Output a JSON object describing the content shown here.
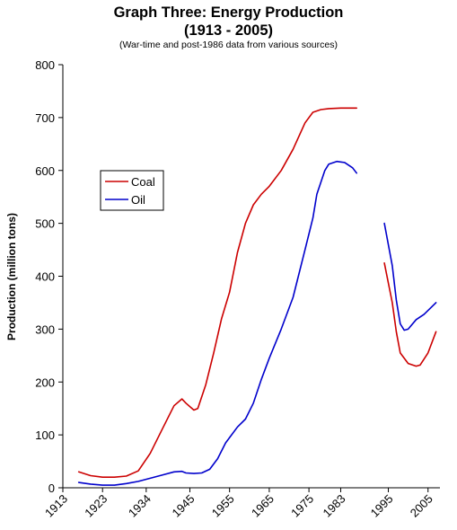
{
  "chart_data": {
    "type": "line",
    "title_line1": "Graph Three: Energy Production",
    "title_line2": "(1913 - 2005)",
    "subtitle": "(War-time and post-1986 data from various sources)",
    "ylabel": "Production (million tons)",
    "xlabel": "",
    "ylim": [
      0,
      800
    ],
    "xlim": [
      1913,
      2008
    ],
    "yticks": [
      0,
      100,
      200,
      300,
      400,
      500,
      600,
      700,
      800
    ],
    "xticks": [
      1913,
      1923,
      1934,
      1945,
      1955,
      1965,
      1975,
      1983,
      1995,
      2005
    ],
    "xtick_labels": [
      "1913",
      "1923",
      "1934",
      "1945",
      "1955",
      "1965",
      "1975",
      "1983",
      "1995",
      "2005"
    ],
    "grid": false,
    "legend_position": "upper-left",
    "series": [
      {
        "name": "Coal",
        "color": "#cc0000",
        "segments": [
          [
            [
              1917,
              30
            ],
            [
              1920,
              23
            ],
            [
              1923,
              20
            ],
            [
              1926,
              20
            ],
            [
              1929,
              22
            ],
            [
              1932,
              32
            ],
            [
              1935,
              65
            ],
            [
              1938,
              110
            ],
            [
              1941,
              155
            ],
            [
              1943,
              168
            ],
            [
              1944,
              160
            ],
            [
              1946,
              147
            ],
            [
              1947,
              150
            ],
            [
              1949,
              195
            ],
            [
              1951,
              255
            ],
            [
              1953,
              320
            ],
            [
              1955,
              370
            ],
            [
              1957,
              445
            ],
            [
              1959,
              500
            ],
            [
              1961,
              535
            ],
            [
              1963,
              555
            ],
            [
              1965,
              570
            ],
            [
              1968,
              600
            ],
            [
              1971,
              640
            ],
            [
              1974,
              690
            ],
            [
              1976,
              710
            ],
            [
              1978,
              715
            ],
            [
              1980,
              717
            ],
            [
              1983,
              718
            ],
            [
              1985,
              718
            ],
            [
              1987,
              718
            ]
          ],
          [
            [
              1994,
              425
            ],
            [
              1996,
              350
            ],
            [
              1997,
              295
            ],
            [
              1998,
              255
            ],
            [
              2000,
              235
            ],
            [
              2002,
              230
            ],
            [
              2003,
              232
            ],
            [
              2005,
              255
            ],
            [
              2007,
              295
            ]
          ]
        ]
      },
      {
        "name": "Oil",
        "color": "#0000cc",
        "segments": [
          [
            [
              1917,
              10
            ],
            [
              1920,
              7
            ],
            [
              1923,
              5
            ],
            [
              1926,
              5
            ],
            [
              1929,
              8
            ],
            [
              1932,
              12
            ],
            [
              1935,
              18
            ],
            [
              1938,
              24
            ],
            [
              1941,
              30
            ],
            [
              1943,
              31
            ],
            [
              1944,
              28
            ],
            [
              1946,
              27
            ],
            [
              1948,
              28
            ],
            [
              1950,
              35
            ],
            [
              1952,
              55
            ],
            [
              1954,
              85
            ],
            [
              1957,
              115
            ],
            [
              1959,
              130
            ],
            [
              1961,
              160
            ],
            [
              1963,
              205
            ],
            [
              1965,
              245
            ],
            [
              1968,
              300
            ],
            [
              1971,
              360
            ],
            [
              1974,
              450
            ],
            [
              1976,
              510
            ],
            [
              1977,
              555
            ],
            [
              1979,
              600
            ],
            [
              1980,
              612
            ],
            [
              1982,
              617
            ],
            [
              1984,
              615
            ],
            [
              1986,
              605
            ],
            [
              1987,
              595
            ]
          ],
          [
            [
              1994,
              500
            ],
            [
              1996,
              420
            ],
            [
              1997,
              355
            ],
            [
              1998,
              310
            ],
            [
              1999,
              298
            ],
            [
              2000,
              300
            ],
            [
              2002,
              318
            ],
            [
              2004,
              328
            ],
            [
              2007,
              350
            ]
          ]
        ]
      }
    ]
  }
}
